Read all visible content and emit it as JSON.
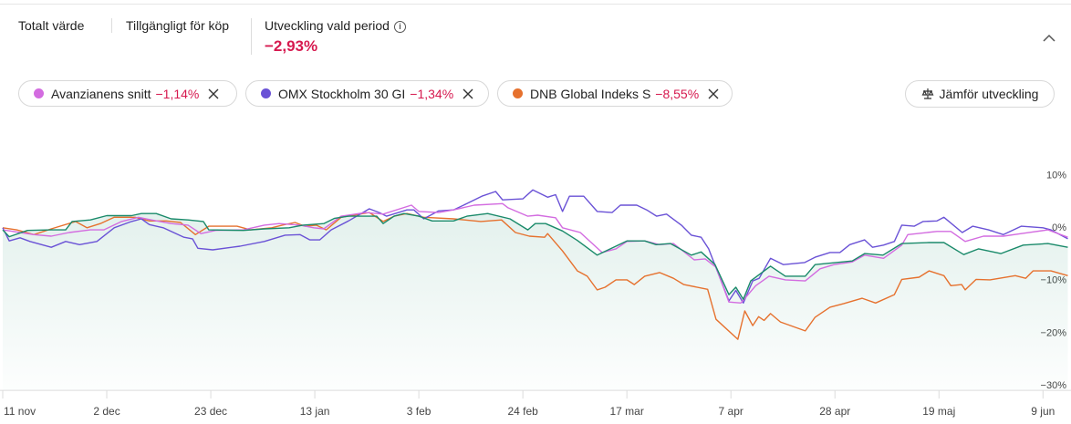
{
  "header": {
    "total_value_label": "Totalt värde",
    "available_label": "Tillgängligt för köp",
    "period_label": "Utveckling vald period",
    "period_value": "−2,93%",
    "info_icon": "i",
    "negative_color": "#d6194f"
  },
  "comparisons": [
    {
      "name": "Avanzianens snitt",
      "change": "−1,14%",
      "color": "#d36ce0"
    },
    {
      "name": "OMX Stockholm 30 GI",
      "change": "−1,34%",
      "color": "#6a52d6"
    },
    {
      "name": "DNB Global Indeks S",
      "change": "−8,55%",
      "color": "#e6712e"
    }
  ],
  "compare_button": {
    "label": "Jämför utveckling",
    "icon": "scale-icon"
  },
  "chart_data": {
    "type": "line",
    "x_unit": "days since 11 nov",
    "xlim": [
      0,
      216
    ],
    "ylim": [
      -30,
      10
    ],
    "y_ticks": [
      10,
      0,
      -10,
      -20,
      -30
    ],
    "y_tick_labels": [
      "10%",
      "0%",
      "−10%",
      "−20%",
      "−30%"
    ],
    "x_ticks": [
      0,
      21,
      42,
      63,
      84,
      105,
      126,
      147,
      168,
      189,
      210
    ],
    "x_tick_labels": [
      "11 nov",
      "2 dec",
      "23 dec",
      "13 jan",
      "3 feb",
      "24 feb",
      "17 mar",
      "7 apr",
      "28 apr",
      "19 maj",
      "9 jun"
    ],
    "series": [
      {
        "name": "",
        "color": "#1a8a6a",
        "area": true,
        "points": [
          [
            0,
            0.5
          ],
          [
            1.3,
            -0.8
          ],
          [
            5,
            0.4
          ],
          [
            9.8,
            0.5
          ],
          [
            12.7,
            0.5
          ],
          [
            14,
            2.1
          ],
          [
            17.7,
            2.4
          ],
          [
            21,
            3.2
          ],
          [
            26,
            3.2
          ],
          [
            28,
            3.6
          ],
          [
            31,
            3.6
          ],
          [
            34,
            2.6
          ],
          [
            37.4,
            2.4
          ],
          [
            40.5,
            2.1
          ],
          [
            41.6,
            0.5
          ],
          [
            48.6,
            0.4
          ],
          [
            52.8,
            0.7
          ],
          [
            57.8,
            0.9
          ],
          [
            60.6,
            1.4
          ],
          [
            64.8,
            1.7
          ],
          [
            67,
            2.7
          ],
          [
            69.8,
            3.1
          ],
          [
            75.5,
            3.1
          ],
          [
            76.8,
            1.7
          ],
          [
            79,
            3.1
          ],
          [
            81,
            3.6
          ],
          [
            84,
            3.1
          ],
          [
            86.7,
            2.2
          ],
          [
            91,
            2.2
          ],
          [
            93.7,
            3.1
          ],
          [
            97.9,
            3.6
          ],
          [
            102.4,
            2.6
          ],
          [
            106,
            0.5
          ],
          [
            107.5,
            1.7
          ],
          [
            109.6,
            1.7
          ],
          [
            113,
            0.3
          ],
          [
            116,
            -1.5
          ],
          [
            120,
            -4.3
          ],
          [
            126,
            -1.6
          ],
          [
            129.6,
            -1.6
          ],
          [
            131.9,
            -2.3
          ],
          [
            134.8,
            -2.1
          ],
          [
            139,
            -4.3
          ],
          [
            141,
            -3.7
          ],
          [
            143.8,
            -6.1
          ],
          [
            146.6,
            -11.8
          ],
          [
            148,
            -10.4
          ],
          [
            149.5,
            -12.7
          ],
          [
            151,
            -9.2
          ],
          [
            155,
            -6.4
          ],
          [
            158,
            -8.3
          ],
          [
            162,
            -8.3
          ],
          [
            164,
            -6.1
          ],
          [
            171.5,
            -5.4
          ],
          [
            174,
            -4
          ],
          [
            177.7,
            -4.3
          ],
          [
            181.5,
            -2.1
          ],
          [
            187,
            -1.9
          ],
          [
            190,
            -1.9
          ],
          [
            194,
            -4.2
          ],
          [
            197,
            -3.1
          ],
          [
            201.5,
            -4
          ],
          [
            206,
            -2.4
          ],
          [
            211,
            -2.1
          ],
          [
            215,
            -2.8
          ]
        ]
      },
      {
        "name": "Avanzianens snitt",
        "color": "#d36ce0",
        "points": [
          [
            0,
            0.5
          ],
          [
            3.5,
            0
          ],
          [
            6.3,
            -0.4
          ],
          [
            9.8,
            -0.7
          ],
          [
            13.4,
            0
          ],
          [
            17.7,
            0.5
          ],
          [
            20.4,
            0.5
          ],
          [
            24,
            2.1
          ],
          [
            27.4,
            2.9
          ],
          [
            30,
            2.4
          ],
          [
            34,
            1.7
          ],
          [
            37.4,
            1.4
          ],
          [
            40,
            -0.2
          ],
          [
            43,
            0.4
          ],
          [
            48.6,
            0.5
          ],
          [
            52.8,
            1.4
          ],
          [
            55.8,
            1.7
          ],
          [
            60,
            1.4
          ],
          [
            62.8,
            0.9
          ],
          [
            64.8,
            0.7
          ],
          [
            68.3,
            3.1
          ],
          [
            73.3,
            3.8
          ],
          [
            76.8,
            3.5
          ],
          [
            82.5,
            5.2
          ],
          [
            84,
            4
          ],
          [
            88,
            3.8
          ],
          [
            91,
            4.3
          ],
          [
            95.2,
            5.2
          ],
          [
            100.9,
            5.5
          ],
          [
            102,
            4.7
          ],
          [
            106,
            3.1
          ],
          [
            108,
            3.3
          ],
          [
            111.6,
            2.8
          ],
          [
            113,
            0.9
          ],
          [
            116.6,
            0
          ],
          [
            121,
            -3.8
          ],
          [
            123.8,
            -3.1
          ],
          [
            126,
            -1.7
          ],
          [
            129.6,
            -1.6
          ],
          [
            132.6,
            -2.3
          ],
          [
            135.4,
            -2.1
          ],
          [
            139.6,
            -5.2
          ],
          [
            141.8,
            -5
          ],
          [
            144,
            -6.6
          ],
          [
            146.6,
            -13.2
          ],
          [
            149,
            -13.4
          ],
          [
            152,
            -10.1
          ],
          [
            154.7,
            -8.3
          ],
          [
            158,
            -9
          ],
          [
            162,
            -9.2
          ],
          [
            165,
            -6.9
          ],
          [
            167.8,
            -6.1
          ],
          [
            171.5,
            -5.6
          ],
          [
            174,
            -4.3
          ],
          [
            177.8,
            -4.9
          ],
          [
            181.5,
            -2.4
          ],
          [
            182.7,
            -0.4
          ],
          [
            188.6,
            0.2
          ],
          [
            191.4,
            0.2
          ],
          [
            194.3,
            -1.7
          ],
          [
            198,
            -0.7
          ],
          [
            202,
            -0.7
          ],
          [
            205.6,
            -0.2
          ],
          [
            211,
            0.5
          ],
          [
            215,
            -0.9
          ]
        ]
      },
      {
        "name": "OMX Stockholm 30 GI",
        "color": "#6a52d6",
        "points": [
          [
            0,
            0.9
          ],
          [
            1.3,
            -1.6
          ],
          [
            3.5,
            -1
          ],
          [
            5.5,
            -1.7
          ],
          [
            9.8,
            -2.8
          ],
          [
            12.7,
            -1.7
          ],
          [
            15.5,
            -2.3
          ],
          [
            19,
            -1.7
          ],
          [
            22.5,
            0.9
          ],
          [
            26,
            2.1
          ],
          [
            28,
            2.6
          ],
          [
            29.6,
            1.5
          ],
          [
            32.4,
            0.9
          ],
          [
            36.6,
            -0.9
          ],
          [
            38.3,
            -1.2
          ],
          [
            39.4,
            -3
          ],
          [
            42.4,
            -3.3
          ],
          [
            47.9,
            -2.6
          ],
          [
            52.8,
            -1.7
          ],
          [
            57,
            -0.5
          ],
          [
            60,
            -0.4
          ],
          [
            62,
            -1.4
          ],
          [
            64,
            -1.4
          ],
          [
            66.3,
            0.5
          ],
          [
            69.8,
            2.2
          ],
          [
            74,
            4.5
          ],
          [
            76,
            3.8
          ],
          [
            77.5,
            3.1
          ],
          [
            81.6,
            4.3
          ],
          [
            83,
            4.3
          ],
          [
            85,
            2.6
          ],
          [
            88,
            4.1
          ],
          [
            91,
            4.3
          ],
          [
            93.7,
            5.5
          ],
          [
            96.7,
            6.9
          ],
          [
            99.5,
            7.8
          ],
          [
            100.9,
            6.2
          ],
          [
            105,
            6.4
          ],
          [
            107,
            8.1
          ],
          [
            110,
            6.7
          ],
          [
            111.6,
            7.2
          ],
          [
            113,
            4
          ],
          [
            114.4,
            6.9
          ],
          [
            117.3,
            6.9
          ],
          [
            120,
            4
          ],
          [
            123,
            3.8
          ],
          [
            124.7,
            5.2
          ],
          [
            128,
            5.2
          ],
          [
            130,
            4.3
          ],
          [
            132,
            3.1
          ],
          [
            134,
            3.5
          ],
          [
            137,
            1.4
          ],
          [
            139,
            -0.5
          ],
          [
            141,
            -0.9
          ],
          [
            142.5,
            -3.1
          ],
          [
            146.6,
            -13
          ],
          [
            148,
            -11
          ],
          [
            149.5,
            -13.4
          ],
          [
            151.4,
            -9.2
          ],
          [
            152.7,
            -8.7
          ],
          [
            155,
            -4.9
          ],
          [
            157.6,
            -6.1
          ],
          [
            161.9,
            -5.7
          ],
          [
            164,
            -4.7
          ],
          [
            167,
            -3.8
          ],
          [
            169,
            -3.8
          ],
          [
            171,
            -2.3
          ],
          [
            174,
            -1.4
          ],
          [
            175.6,
            -2.8
          ],
          [
            177.8,
            -2.4
          ],
          [
            180,
            -1.7
          ],
          [
            181.5,
            1.4
          ],
          [
            184,
            1.2
          ],
          [
            185.8,
            2.1
          ],
          [
            188.6,
            2.2
          ],
          [
            190,
            2.9
          ],
          [
            193.7,
            0
          ],
          [
            195.8,
            1.2
          ],
          [
            199,
            0.5
          ],
          [
            202,
            -0.4
          ],
          [
            205.6,
            1.2
          ],
          [
            210,
            0.9
          ],
          [
            211.6,
            0.5
          ],
          [
            215,
            -1.2
          ]
        ]
      },
      {
        "name": "DNB Global Indeks S",
        "color": "#e6712e",
        "points": [
          [
            0,
            0.9
          ],
          [
            2.8,
            0.5
          ],
          [
            6.3,
            -0.4
          ],
          [
            9.8,
            0.7
          ],
          [
            14.7,
            2.1
          ],
          [
            17,
            0.9
          ],
          [
            19.7,
            1.7
          ],
          [
            22.5,
            2.9
          ],
          [
            26.7,
            2.9
          ],
          [
            29.6,
            2.2
          ],
          [
            33,
            2.2
          ],
          [
            35.9,
            1.9
          ],
          [
            38.9,
            -0.4
          ],
          [
            41.6,
            1.2
          ],
          [
            47.3,
            1.2
          ],
          [
            50,
            0.5
          ],
          [
            54.3,
            0.9
          ],
          [
            56.4,
            1.4
          ],
          [
            59,
            1.9
          ],
          [
            61,
            1.2
          ],
          [
            63.3,
            1.4
          ],
          [
            65.3,
            0.5
          ],
          [
            68.3,
            2.9
          ],
          [
            74,
            3.8
          ],
          [
            76.8,
            2.1
          ],
          [
            79,
            3.1
          ],
          [
            81.6,
            3.6
          ],
          [
            85,
            2.9
          ],
          [
            91,
            2.6
          ],
          [
            96.5,
            2.1
          ],
          [
            100.7,
            2.4
          ],
          [
            103.5,
            0
          ],
          [
            106.3,
            -0.7
          ],
          [
            109.4,
            -0.9
          ],
          [
            110,
            -0.2
          ],
          [
            113,
            -3.5
          ],
          [
            116,
            -7.3
          ],
          [
            118,
            -8.3
          ],
          [
            120,
            -10.9
          ],
          [
            121.6,
            -10.4
          ],
          [
            123.8,
            -9
          ],
          [
            126,
            -9
          ],
          [
            127.5,
            -9.9
          ],
          [
            129.6,
            -8.3
          ],
          [
            132.6,
            -7.6
          ],
          [
            135.4,
            -8.7
          ],
          [
            137.5,
            -9.9
          ],
          [
            142.3,
            -10.8
          ],
          [
            144,
            -16.5
          ],
          [
            148.4,
            -20.3
          ],
          [
            149.8,
            -14.9
          ],
          [
            151.4,
            -17.7
          ],
          [
            152.6,
            -16
          ],
          [
            153.7,
            -16.7
          ],
          [
            155,
            -15.4
          ],
          [
            157,
            -17
          ],
          [
            162,
            -18.7
          ],
          [
            164,
            -16.1
          ],
          [
            167,
            -14.2
          ],
          [
            169.8,
            -13.5
          ],
          [
            173.5,
            -12.5
          ],
          [
            176.2,
            -13.4
          ],
          [
            180,
            -11.8
          ],
          [
            181.5,
            -8.9
          ],
          [
            185,
            -8.5
          ],
          [
            187,
            -7.3
          ],
          [
            190,
            -8.2
          ],
          [
            191.4,
            -10.1
          ],
          [
            193.6,
            -9.9
          ],
          [
            194.3,
            -10.9
          ],
          [
            196.5,
            -8.9
          ],
          [
            199.3,
            -9
          ],
          [
            204.4,
            -8.2
          ],
          [
            206.5,
            -8.7
          ],
          [
            208,
            -7.3
          ],
          [
            211.6,
            -7.3
          ],
          [
            215,
            -8.2
          ]
        ]
      }
    ]
  }
}
